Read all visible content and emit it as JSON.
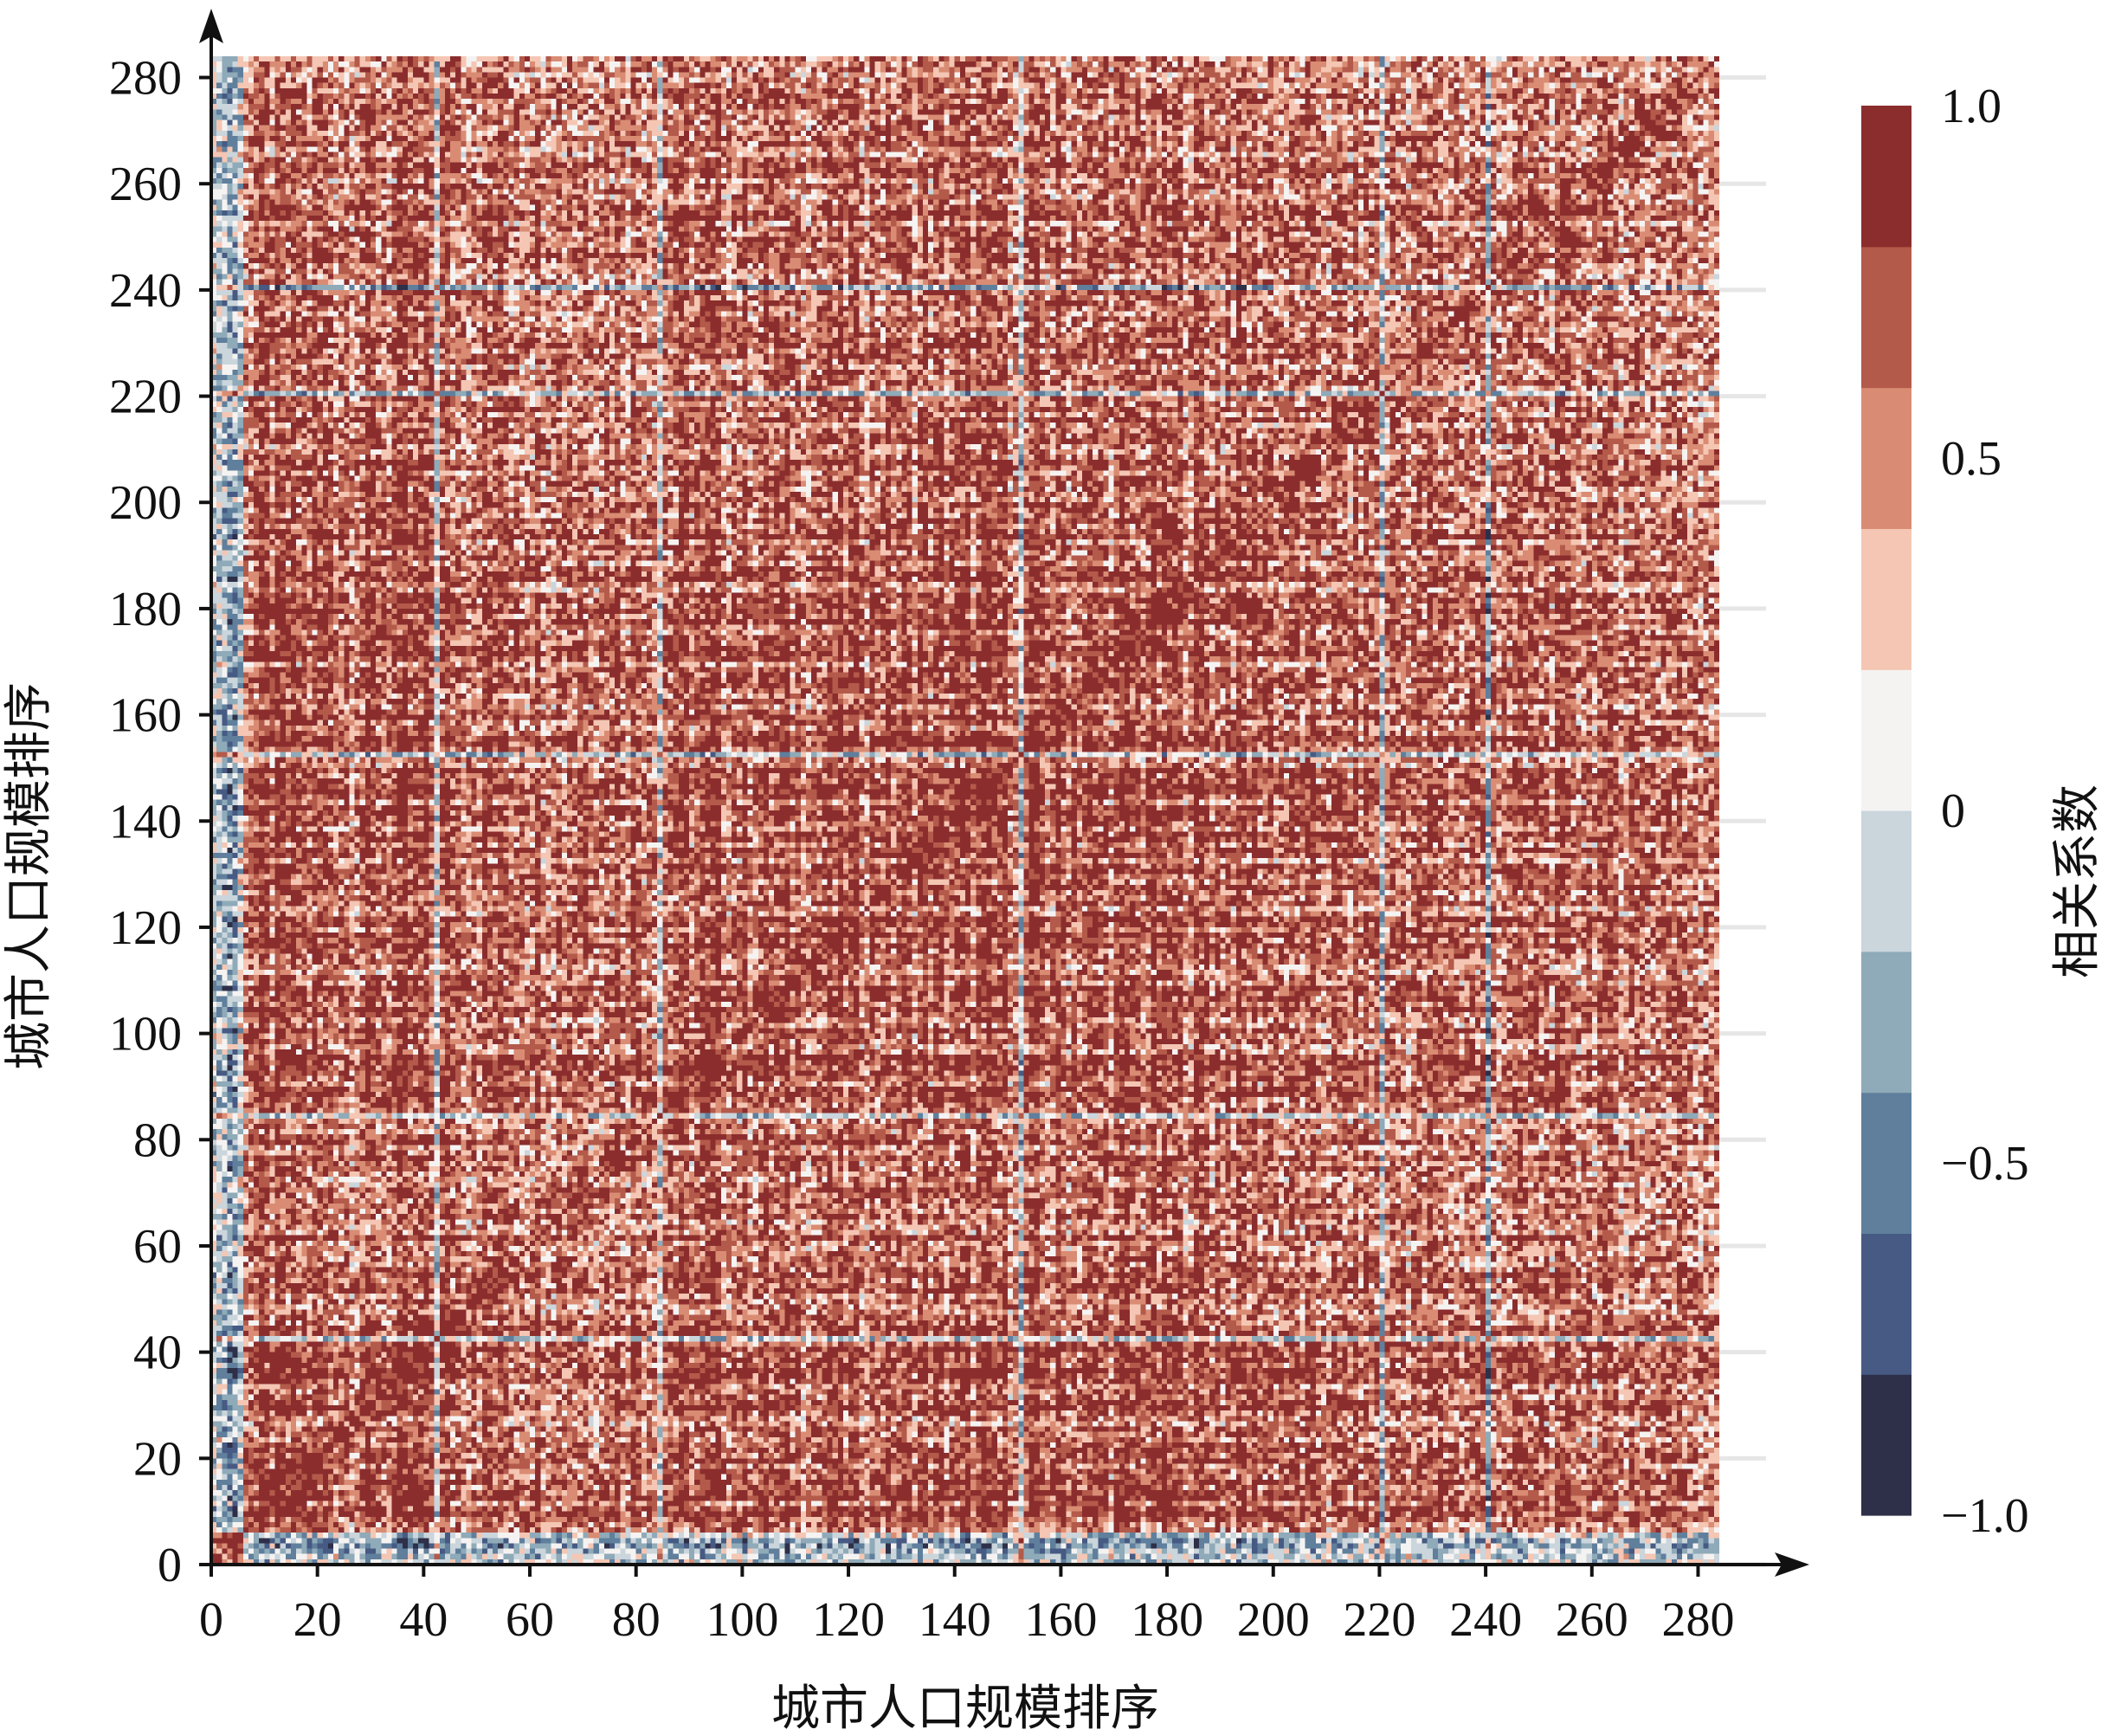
{
  "chart_data": {
    "type": "heatmap",
    "title": "",
    "xlabel": "城市人口规模排序",
    "ylabel": "城市人口规模排序",
    "n_cities": 284,
    "xlim": [
      0,
      284
    ],
    "ylim": [
      0,
      284
    ],
    "x_ticks": [
      0,
      20,
      40,
      60,
      80,
      100,
      120,
      140,
      160,
      180,
      200,
      220,
      240,
      260,
      280
    ],
    "y_ticks": [
      0,
      20,
      40,
      60,
      80,
      100,
      120,
      140,
      160,
      180,
      200,
      220,
      240,
      260,
      280
    ],
    "diagonal_value": 1.0,
    "description_note_values": {
      "dominant_range": [
        0.2,
        0.8
      ],
      "negative_bands_at_ranks": [
        1,
        2,
        3,
        42,
        84,
        152,
        220,
        240
      ]
    },
    "colorbar": {
      "label": "相关系数",
      "ticks": [
        1.0,
        0.5,
        0,
        -0.5,
        -1.0
      ],
      "tick_labels": [
        "1.0",
        "0.5",
        "0",
        "−0.5",
        "−1.0"
      ],
      "range": [
        -1.0,
        1.0
      ],
      "levels": [
        -1.0,
        -0.8,
        -0.6,
        -0.4,
        -0.2,
        0,
        0.2,
        0.4,
        0.6,
        0.8,
        1.0
      ],
      "colors": [
        "#2e2f48",
        "#465a83",
        "#5f7f9c",
        "#8faab8",
        "#cad5dc",
        "#f5f3f2",
        "#f4c6b3",
        "#d98c73",
        "#b45a4b",
        "#8b2d2d",
        "#55201f"
      ]
    }
  }
}
